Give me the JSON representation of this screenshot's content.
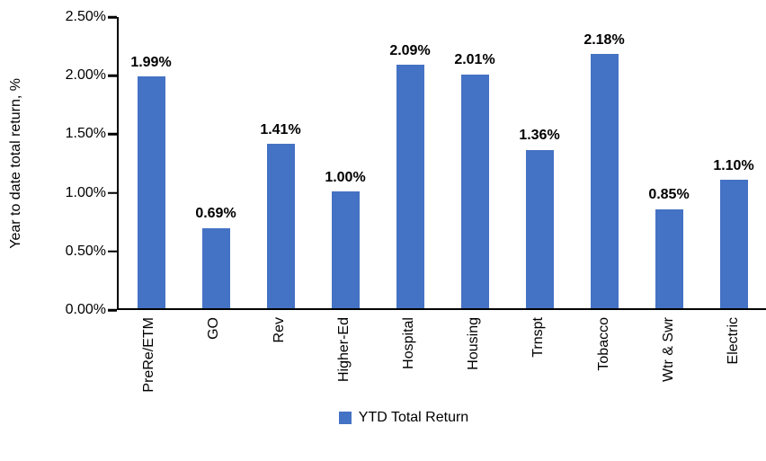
{
  "chart_data": {
    "type": "bar",
    "title": "",
    "xlabel": "",
    "ylabel": "Year to date total return, %",
    "ylim": [
      0,
      2.5
    ],
    "ytick_labels": [
      "2.50%",
      "2.00%",
      "1.50%",
      "1.00%",
      "0.50%",
      "0.00%"
    ],
    "categories": [
      "PreRe/ETM",
      "GO",
      "Rev",
      "Higher-Ed",
      "Hospital",
      "Housing",
      "Trnspt",
      "Tobacco",
      "Wtr & Swr",
      "Electric"
    ],
    "series": [
      {
        "name": "YTD Total Return",
        "values": [
          1.99,
          0.69,
          1.41,
          1.0,
          2.09,
          2.01,
          1.36,
          2.18,
          0.85,
          1.1
        ],
        "data_labels": [
          "1.99%",
          "0.69%",
          "1.41%",
          "1.00%",
          "2.09%",
          "2.01%",
          "1.36%",
          "2.18%",
          "0.85%",
          "1.10%"
        ],
        "color": "#4472C4"
      }
    ],
    "legend": {
      "position": "bottom",
      "entries": [
        "YTD Total Return"
      ]
    },
    "grid": false,
    "axis_color": "#000000",
    "background": "#FFFFFF"
  }
}
